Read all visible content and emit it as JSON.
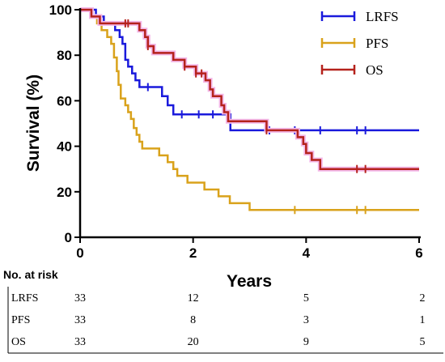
{
  "chart_data": {
    "type": "line",
    "subtype": "kaplan-meier",
    "xlabel": "Years",
    "ylabel": "Survival (%)",
    "xlim": [
      0,
      6
    ],
    "ylim": [
      0,
      100
    ],
    "x_ticks": [
      0,
      2,
      4,
      6
    ],
    "y_ticks": [
      0,
      20,
      40,
      60,
      80,
      100
    ],
    "grid": false,
    "legend_position": "top-right",
    "series": [
      {
        "name": "LRFS",
        "color": "#1a1adc",
        "steps": [
          [
            0,
            100
          ],
          [
            0.28,
            97
          ],
          [
            0.42,
            94
          ],
          [
            0.62,
            91
          ],
          [
            0.7,
            88
          ],
          [
            0.75,
            85
          ],
          [
            0.8,
            78
          ],
          [
            0.85,
            75
          ],
          [
            0.92,
            72
          ],
          [
            0.98,
            69
          ],
          [
            1.05,
            66
          ],
          [
            1.45,
            62
          ],
          [
            1.55,
            58
          ],
          [
            1.65,
            54
          ],
          [
            2.65,
            54
          ],
          [
            2.66,
            47
          ],
          [
            6,
            47
          ]
        ],
        "censored": [
          1.2,
          1.8,
          2.1,
          2.35,
          2.65,
          3.35,
          3.8,
          4.25,
          4.9,
          5.05
        ]
      },
      {
        "name": "PFS",
        "color": "#d9a21b",
        "steps": [
          [
            0,
            100
          ],
          [
            0.2,
            97
          ],
          [
            0.3,
            94
          ],
          [
            0.38,
            91
          ],
          [
            0.48,
            88
          ],
          [
            0.55,
            85
          ],
          [
            0.6,
            79
          ],
          [
            0.65,
            73
          ],
          [
            0.68,
            67
          ],
          [
            0.72,
            61
          ],
          [
            0.8,
            58
          ],
          [
            0.85,
            55
          ],
          [
            0.9,
            52
          ],
          [
            0.95,
            48
          ],
          [
            1.0,
            45
          ],
          [
            1.05,
            42
          ],
          [
            1.1,
            39
          ],
          [
            1.4,
            36
          ],
          [
            1.55,
            33
          ],
          [
            1.65,
            30
          ],
          [
            1.72,
            27
          ],
          [
            1.9,
            24
          ],
          [
            2.2,
            21
          ],
          [
            2.45,
            18
          ],
          [
            2.65,
            15
          ],
          [
            3.0,
            12
          ],
          [
            6,
            12
          ]
        ],
        "censored": [
          3.8,
          4.9,
          5.05
        ]
      },
      {
        "name": "OS",
        "color": "#b5221c",
        "steps": [
          [
            0,
            100
          ],
          [
            0.2,
            97
          ],
          [
            0.35,
            94
          ],
          [
            1.05,
            91
          ],
          [
            1.15,
            88
          ],
          [
            1.2,
            84
          ],
          [
            1.3,
            81
          ],
          [
            1.65,
            78
          ],
          [
            1.85,
            75
          ],
          [
            2.05,
            72
          ],
          [
            2.22,
            69
          ],
          [
            2.3,
            65
          ],
          [
            2.35,
            62
          ],
          [
            2.5,
            58
          ],
          [
            2.55,
            55
          ],
          [
            2.62,
            51
          ],
          [
            3.3,
            47
          ],
          [
            3.85,
            44
          ],
          [
            3.95,
            41
          ],
          [
            4.0,
            37
          ],
          [
            4.1,
            34
          ],
          [
            4.25,
            30
          ],
          [
            6,
            30
          ]
        ],
        "censored": [
          0.8,
          0.85,
          1.2,
          1.85,
          2.05,
          2.15,
          3.3,
          4.9,
          5.05
        ]
      }
    ],
    "risk_table": {
      "title": "No. at risk",
      "time_points": [
        0,
        2,
        4,
        6
      ],
      "rows": [
        {
          "label": "LRFS",
          "values": [
            "33",
            "12",
            "5",
            "2"
          ]
        },
        {
          "label": "PFS",
          "values": [
            "33",
            "8",
            "3",
            "1"
          ]
        },
        {
          "label": "OS",
          "values": [
            "33",
            "20",
            "9",
            "5"
          ]
        }
      ]
    }
  }
}
